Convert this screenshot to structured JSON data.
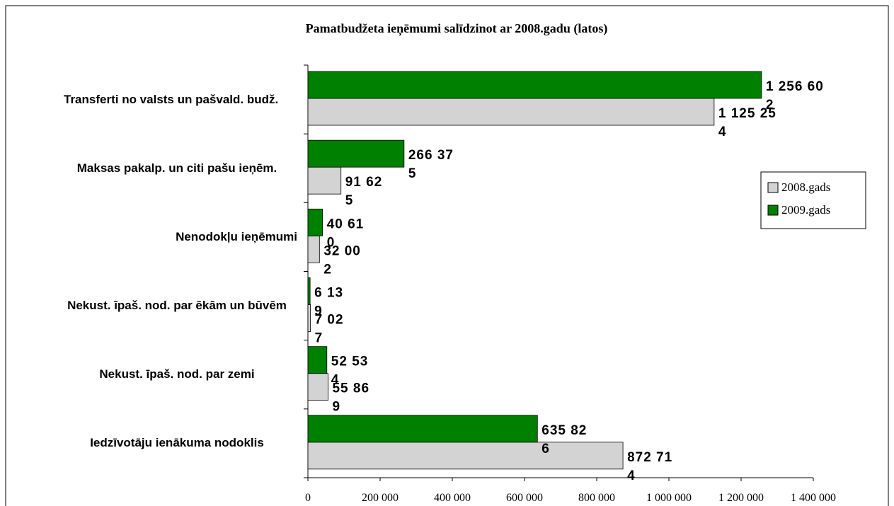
{
  "chart_data": {
    "type": "barh",
    "title": "Pamatbudžeta ieņēmumi salīdzinot ar 2008.gadu (latos)",
    "categories": [
      "Transferti no valsts un pašvald. budž.",
      "Maksas pakalp. un citi pašu ieņēm.",
      "Nenodokļu ieņēmumi",
      "Nekust. īpaš. nod. par ēkām un būvēm",
      "Nekust. īpaš. nod. par zemi",
      "Iedzīvotāju ienākuma nodoklis"
    ],
    "series": [
      {
        "name": "2008.gads",
        "color": "#d3d3d3",
        "values": [
          1125254,
          91625,
          32002,
          7027,
          55869,
          872714
        ],
        "value_labels": [
          "1 125 254",
          "91 625",
          "32 002",
          "7 027",
          "55 869",
          "872 714"
        ]
      },
      {
        "name": "2009.gads",
        "color": "#008000",
        "values": [
          1256602,
          266375,
          40610,
          6139,
          52534,
          635826
        ],
        "value_labels": [
          "1 256 602",
          "266 375",
          "40 610",
          "6 139",
          "52 534",
          "635 826"
        ]
      }
    ],
    "xlim": [
      0,
      1400000
    ],
    "xticks": [
      0,
      {
        "value": 200000,
        "label": "200 000"
      },
      {
        "value": 400000,
        "label": "400 000"
      },
      {
        "value": 600000,
        "label": "600 000"
      },
      {
        "value": 800000,
        "label": "800 000"
      },
      {
        "value": 1000000,
        "label": "1 000 000"
      },
      {
        "value": 1200000,
        "label": "1 200 000"
      },
      {
        "value": 1400000,
        "label": "1 400 000"
      }
    ],
    "legend": "right"
  }
}
